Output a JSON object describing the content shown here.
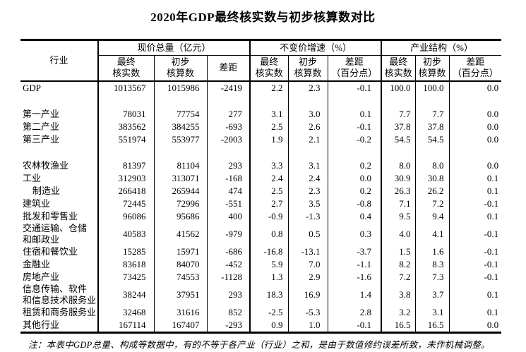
{
  "title": "2020年GDP最终核实数与初步核算数对比",
  "table": {
    "header": {
      "industry": "行业",
      "groups": [
        {
          "label": "现价总量（亿元）",
          "cols": [
            "最终\n核实数",
            "初步\n核算数",
            "差距"
          ]
        },
        {
          "label": "不变价增速（%）",
          "cols": [
            "最终\n核实数",
            "初步\n核算数",
            "差距\n（百分点）"
          ]
        },
        {
          "label": "产业结构（%）",
          "cols": [
            "最终\n核实数",
            "初步\n核算数",
            "差距\n（百分点）"
          ]
        }
      ]
    },
    "rows": [
      {
        "name": "GDP",
        "values": [
          "1013567",
          "1015986",
          "-2419",
          "2.2",
          "2.3",
          "-0.1",
          "100.0",
          "100.0",
          "0.0"
        ]
      },
      {
        "spacer": true
      },
      {
        "name": "第一产业",
        "values": [
          "78031",
          "77754",
          "277",
          "3.1",
          "3.0",
          "0.1",
          "7.7",
          "7.7",
          "0.0"
        ]
      },
      {
        "name": "第二产业",
        "values": [
          "383562",
          "384255",
          "-693",
          "2.5",
          "2.6",
          "-0.1",
          "37.8",
          "37.8",
          "0.0"
        ]
      },
      {
        "name": "第三产业",
        "values": [
          "551974",
          "553977",
          "-2003",
          "1.9",
          "2.1",
          "-0.2",
          "54.5",
          "54.5",
          "0.0"
        ]
      },
      {
        "spacer": true
      },
      {
        "name": "农林牧渔业",
        "values": [
          "81397",
          "81104",
          "293",
          "3.3",
          "3.1",
          "0.2",
          "8.0",
          "8.0",
          "0.0"
        ]
      },
      {
        "name": "工业",
        "values": [
          "312903",
          "313071",
          "-168",
          "2.4",
          "2.4",
          "0.0",
          "30.9",
          "30.8",
          "0.1"
        ]
      },
      {
        "name": "制造业",
        "indent": true,
        "values": [
          "266418",
          "265944",
          "474",
          "2.5",
          "2.3",
          "0.2",
          "26.3",
          "26.2",
          "0.1"
        ]
      },
      {
        "name": "建筑业",
        "values": [
          "72445",
          "72996",
          "-551",
          "2.7",
          "3.5",
          "-0.8",
          "7.1",
          "7.2",
          "-0.1"
        ]
      },
      {
        "name": "批发和零售业",
        "values": [
          "96086",
          "95686",
          "400",
          "-0.9",
          "-1.3",
          "0.4",
          "9.5",
          "9.4",
          "0.1"
        ]
      },
      {
        "name": "交通运输、仓储\n和邮政业",
        "values": [
          "40583",
          "41562",
          "-979",
          "0.8",
          "0.5",
          "0.3",
          "4.0",
          "4.1",
          "-0.1"
        ]
      },
      {
        "name": "住宿和餐饮业",
        "values": [
          "15285",
          "15971",
          "-686",
          "-16.8",
          "-13.1",
          "-3.7",
          "1.5",
          "1.6",
          "-0.1"
        ]
      },
      {
        "name": "金融业",
        "values": [
          "83618",
          "84070",
          "-452",
          "5.9",
          "7.0",
          "-1.1",
          "8.2",
          "8.3",
          "-0.1"
        ]
      },
      {
        "name": "房地产业",
        "values": [
          "73425",
          "74553",
          "-1128",
          "1.3",
          "2.9",
          "-1.6",
          "7.2",
          "7.3",
          "-0.1"
        ]
      },
      {
        "name": "信息传输、软件\n和信息技术服务业",
        "values": [
          "38244",
          "37951",
          "293",
          "18.3",
          "16.9",
          "1.4",
          "3.8",
          "3.7",
          "0.1"
        ]
      },
      {
        "name": "租赁和商务服务业",
        "values": [
          "32468",
          "31616",
          "852",
          "-2.5",
          "-5.3",
          "2.8",
          "3.2",
          "3.1",
          "0.1"
        ]
      },
      {
        "name": "其他行业",
        "values": [
          "167114",
          "167407",
          "-293",
          "0.9",
          "1.0",
          "-0.1",
          "16.5",
          "16.5",
          "0.0"
        ]
      }
    ]
  },
  "footnote": "注：本表中GDP总量、构成等数据中，有的不等于各产业（行业）之和，是由于数值修约误差所致，未作机械调整。"
}
